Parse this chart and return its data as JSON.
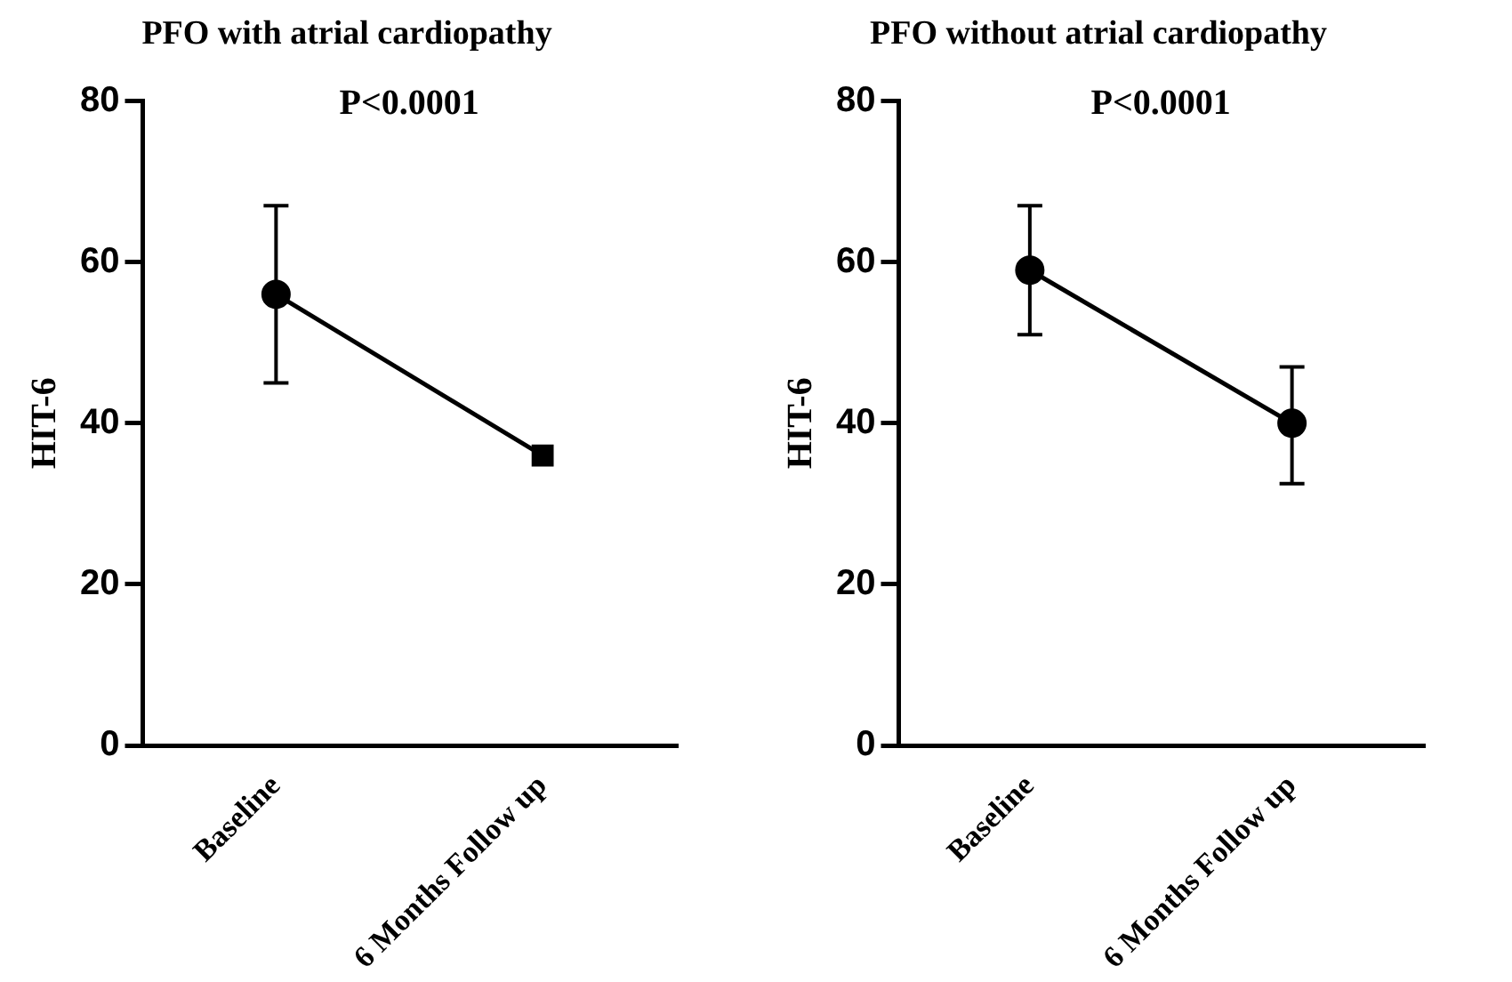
{
  "chart_data": [
    {
      "type": "line",
      "title": "PFO with atrial cardiopathy",
      "ylabel": "HIT-6",
      "annotations": [
        "P<0.0001"
      ],
      "categories": [
        "Baseline",
        "6 Months Follow up"
      ],
      "series": [
        {
          "color": "#000000",
          "values": [
            56,
            36
          ],
          "errors": [
            [
              45,
              67
            ],
            null
          ]
        }
      ],
      "ylim": [
        0,
        80
      ],
      "yticks": [
        0,
        20,
        40,
        60,
        80
      ],
      "grid": false,
      "legend": false,
      "marker": [
        "circle",
        "square"
      ],
      "line_style": "solid"
    },
    {
      "type": "line",
      "title": "PFO without atrial cardiopathy",
      "ylabel": "HIT-6",
      "annotations": [
        "P<0.0001"
      ],
      "categories": [
        "Baseline",
        "6 Months Follow up"
      ],
      "series": [
        {
          "color": "#000000",
          "values": [
            59,
            40
          ],
          "errors": [
            [
              51,
              67
            ],
            [
              32.5,
              47
            ]
          ]
        }
      ],
      "ylim": [
        0,
        80
      ],
      "yticks": [
        0,
        20,
        40,
        60,
        80
      ],
      "grid": false,
      "legend": false,
      "marker": "circle",
      "line_style": "solid"
    }
  ]
}
